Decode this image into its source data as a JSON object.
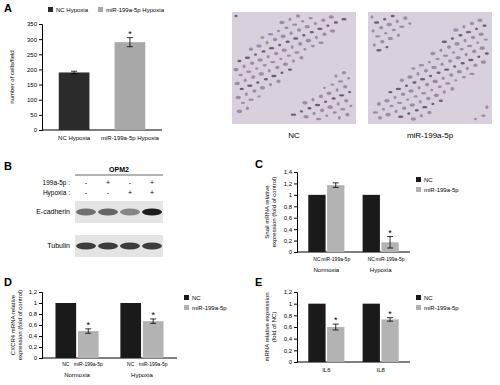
{
  "chart_data": [
    {
      "type": "bar",
      "y_label": "number of cells/field",
      "categories": [
        "NC Hypoxia",
        "miR-199a-5p Hypoxia"
      ],
      "values": [
        190,
        290
      ],
      "errors": [
        4,
        15
      ],
      "significance": [
        null,
        "*"
      ],
      "colors": [
        "#2b2b2b",
        "#a8a8a8"
      ],
      "legend": "top",
      "ylim": [
        0,
        350
      ],
      "yticks": [
        0,
        50,
        100,
        150,
        200,
        250,
        300,
        350
      ]
    },
    {
      "type": "bar",
      "y_label": "Snail mRNA relative expression (fold of control)",
      "categories": [
        "Normoxia",
        "Hypoxia"
      ],
      "bar_labels": [
        "NC",
        "miR-199a-5p",
        "NC",
        "miR-199a-5p"
      ],
      "series": [
        {
          "name": "NC",
          "color": "#1a1a1a",
          "values": [
            1,
            1
          ],
          "errors": [
            null,
            null
          ],
          "significance": [
            null,
            null
          ]
        },
        {
          "name": "miR-199a-5p",
          "color": "#b3b3b3",
          "values": [
            1.17,
            0.17
          ],
          "errors": [
            0.04,
            0.1
          ],
          "significance": [
            null,
            "*"
          ]
        }
      ],
      "legend": "right",
      "ylim": [
        0,
        1.4
      ],
      "yticks": [
        0,
        {
          "value": 0.2,
          "label": "0,2"
        },
        {
          "value": 0.4,
          "label": "0,4"
        },
        {
          "value": 0.6,
          "label": "0,6"
        },
        {
          "value": 0.8,
          "label": "0,8"
        },
        1,
        {
          "value": 1.2,
          "label": "1,2"
        },
        {
          "value": 1.4,
          "label": "1,4"
        }
      ]
    },
    {
      "type": "bar",
      "y_label": "CXCR4 mRNA relative expression (fold of control)",
      "categories": [
        "Normoxia",
        "Hypoxia"
      ],
      "bar_labels": [
        "NC",
        "miR-199a-5p",
        "NC",
        "miR-199a-5p"
      ],
      "series": [
        {
          "name": "NC",
          "color": "#1a1a1a",
          "values": [
            1,
            1
          ],
          "errors": [
            null,
            null
          ],
          "significance": [
            null,
            null
          ]
        },
        {
          "name": "miR-199a-5p",
          "color": "#b3b3b3",
          "values": [
            0.49,
            0.67
          ],
          "errors": [
            0.04,
            0.04
          ],
          "significance": [
            "*",
            "*"
          ]
        }
      ],
      "legend": "right",
      "ylim": [
        0,
        1.2
      ],
      "yticks": [
        0,
        {
          "value": 0.2,
          "label": "0,2"
        },
        {
          "value": 0.4,
          "label": "0,4"
        },
        {
          "value": 0.6,
          "label": "0,6"
        },
        {
          "value": 0.8,
          "label": "0,8"
        },
        1,
        {
          "value": 1.2,
          "label": "1,2"
        }
      ]
    },
    {
      "type": "bar",
      "y_label": "mRNA relative expression (fold of NC)",
      "categories": [
        "IL6",
        "IL8"
      ],
      "series": [
        {
          "name": "NC",
          "color": "#1a1a1a",
          "values": [
            1,
            1
          ],
          "errors": [
            null,
            null
          ],
          "significance": [
            null,
            null
          ]
        },
        {
          "name": "miR-199a-5p",
          "color": "#b3b3b3",
          "values": [
            0.6,
            0.73
          ],
          "errors": [
            0.05,
            0.03
          ],
          "significance": [
            "*",
            "*"
          ]
        }
      ],
      "legend": "right",
      "ylim": [
        0,
        1.2
      ],
      "yticks": [
        0,
        {
          "value": 0.2,
          "label": "0,2"
        },
        {
          "value": 0.4,
          "label": "0,4"
        },
        {
          "value": 0.6,
          "label": "0,6"
        },
        {
          "value": 0.8,
          "label": "0,8"
        },
        1,
        {
          "value": 1.2,
          "label": "1,2"
        }
      ]
    }
  ],
  "figure": {
    "panel_labels": [
      "A",
      "B",
      "C",
      "D",
      "E"
    ],
    "micrographs": [
      "NC",
      "miR-199a-5p"
    ],
    "blot": {
      "cell_line": "OPM2",
      "conditions": [
        {
          "label": "199a-5p :",
          "signs": [
            "-",
            "+",
            "-",
            "+"
          ]
        },
        {
          "label": "Hypoxia :",
          "signs": [
            "-",
            "-",
            "+",
            "+"
          ]
        }
      ],
      "bands": [
        {
          "label": "E-cadherin",
          "intensity": [
            0.55,
            0.6,
            0.45,
            0.95
          ]
        },
        {
          "label": "Tubulin",
          "intensity": [
            0.8,
            0.8,
            0.8,
            0.8
          ]
        }
      ]
    }
  }
}
